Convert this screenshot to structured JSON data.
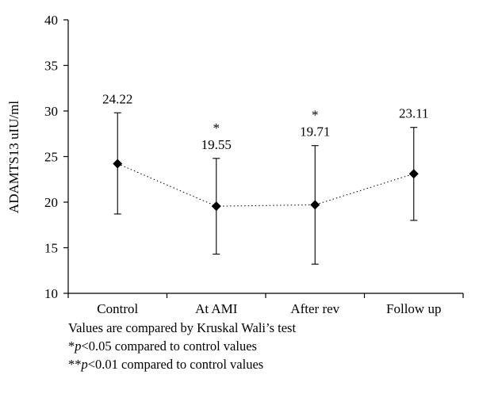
{
  "chart_data": {
    "type": "line",
    "categories": [
      "Control",
      "At AMI",
      "After rev",
      "Follow up"
    ],
    "values": [
      24.22,
      19.55,
      19.71,
      23.11
    ],
    "error_low": [
      18.7,
      14.3,
      13.2,
      18.0
    ],
    "error_high": [
      29.8,
      24.8,
      26.2,
      28.2
    ],
    "data_labels": [
      "24.22",
      "19.55",
      "19.71",
      "23.11"
    ],
    "significance": [
      "",
      "*",
      "*",
      ""
    ],
    "ylabel": "ADAMTS13 uIU/ml",
    "xlabel": "",
    "ylim": [
      10,
      40
    ],
    "yticks": [
      10,
      15,
      20,
      25,
      30,
      35,
      40
    ],
    "line_style": "dotted",
    "marker": "diamond",
    "grid": false,
    "legend": "none"
  },
  "notes": {
    "line1": "Values are compared by Kruskal Wali’s test",
    "line2": {
      "stars": "*",
      "p": "p",
      "rest": "<0.05 compared to control values"
    },
    "line3": {
      "stars": "**",
      "p": "p",
      "rest": "<0.01 compared to control values"
    }
  }
}
